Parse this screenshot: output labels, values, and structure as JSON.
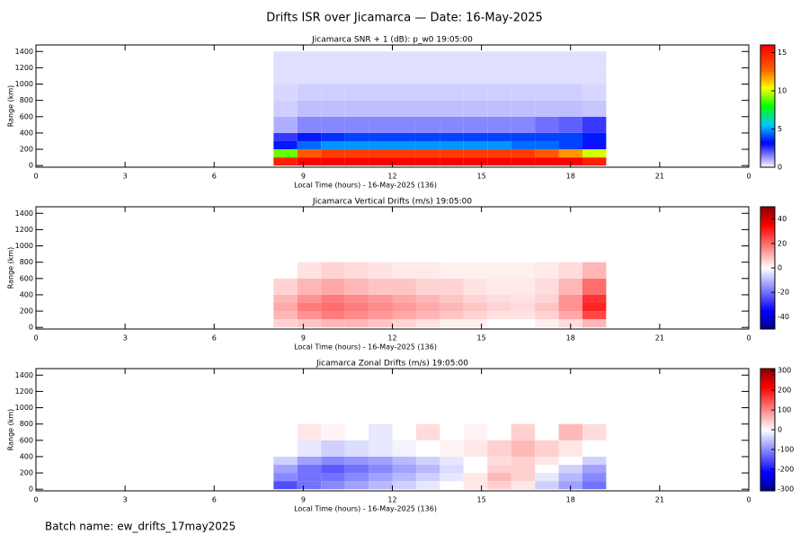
{
  "title": "Drifts ISR over Jicamarca — Date: 16-May-2025",
  "footer": "Batch name: ew_drifts_17may2025",
  "chart_data": [
    {
      "type": "heatmap",
      "title": "Jicamarca SNR + 1 (dB): p_w0 19:05:00",
      "xlabel": "Local Time (hours) - 16-May-2025 (136)",
      "ylabel": "Range (km)",
      "xlim": [
        0,
        24
      ],
      "xticks": [
        0,
        3,
        6,
        9,
        12,
        15,
        18,
        21,
        {
          "value": 24,
          "label": "0"
        }
      ],
      "ylim": [
        -20,
        1480
      ],
      "yticks": [
        0,
        200,
        400,
        600,
        800,
        1000,
        1200,
        1400
      ],
      "x": [
        8.0,
        8.8,
        9.6,
        10.4,
        11.2,
        12.0,
        12.8,
        13.6,
        14.4,
        15.2,
        16.0,
        16.8,
        17.6,
        18.4,
        19.2
      ],
      "y": [
        0,
        100,
        200,
        300,
        400,
        600,
        800,
        1000,
        1200,
        1400
      ],
      "values": [
        [
          15,
          16,
          16,
          16,
          16,
          16,
          16,
          16,
          16,
          16,
          16,
          16,
          16,
          15
        ],
        [
          9,
          13,
          14,
          14,
          14,
          14,
          14,
          14,
          14,
          14,
          14,
          13,
          12,
          10
        ],
        [
          3.5,
          4.5,
          5,
          5,
          5,
          5,
          5,
          5,
          5,
          5,
          4.5,
          4.5,
          4,
          3
        ],
        [
          2.5,
          3.5,
          3.8,
          4,
          4,
          4,
          4,
          4,
          4,
          4,
          4,
          4,
          4,
          3.5
        ],
        [
          1,
          1.5,
          1.5,
          1.5,
          1.5,
          1.5,
          1.5,
          1.5,
          1.5,
          1.5,
          1.5,
          1.8,
          2,
          2.5
        ],
        [
          0.6,
          0.8,
          0.8,
          0.8,
          0.8,
          0.8,
          0.8,
          0.8,
          0.8,
          0.8,
          0.8,
          0.8,
          0.8,
          0.7
        ],
        [
          0.5,
          0.6,
          0.6,
          0.6,
          0.6,
          0.6,
          0.6,
          0.6,
          0.6,
          0.6,
          0.6,
          0.6,
          0.6,
          0.5
        ],
        [
          0.4,
          0.4,
          0.4,
          0.4,
          0.4,
          0.4,
          0.4,
          0.4,
          0.4,
          0.4,
          0.4,
          0.4,
          0.4,
          0.4
        ],
        [
          0.4,
          0.4,
          0.4,
          0.4,
          0.4,
          0.4,
          0.4,
          0.4,
          0.4,
          0.4,
          0.4,
          0.4,
          0.4,
          0.4
        ]
      ],
      "clim": [
        0,
        16
      ],
      "cticks": [
        0,
        5,
        10,
        15
      ],
      "colorscale": [
        [
          0,
          "#ffffff"
        ],
        [
          0.2,
          "#0000ff"
        ],
        [
          0.35,
          "#00c8ff"
        ],
        [
          0.5,
          "#00ff00"
        ],
        [
          0.65,
          "#ffff00"
        ],
        [
          0.8,
          "#ff6000"
        ],
        [
          1,
          "#ff0000"
        ]
      ]
    },
    {
      "type": "heatmap",
      "title": "Jicamarca Vertical Drifts (m/s) 19:05:00",
      "xlabel": "Local Time (hours) - 16-May-2025 (136)",
      "ylabel": "Range (km)",
      "xlim": [
        0,
        24
      ],
      "xticks": [
        0,
        3,
        6,
        9,
        12,
        15,
        18,
        21,
        {
          "value": 24,
          "label": "0"
        }
      ],
      "ylim": [
        -20,
        1480
      ],
      "yticks": [
        0,
        200,
        400,
        600,
        800,
        1000,
        1200,
        1400
      ],
      "x": [
        8.0,
        8.8,
        9.6,
        10.4,
        11.2,
        12.0,
        12.8,
        13.6,
        14.4,
        15.2,
        16.0,
        16.8,
        17.6,
        18.4,
        19.2
      ],
      "y": [
        0,
        100,
        200,
        300,
        400,
        600,
        800,
        1000,
        1200,
        1400
      ],
      "values": [
        [
          6,
          8,
          10,
          10,
          8,
          6,
          4,
          2,
          2,
          0,
          0,
          2,
          5,
          10
        ],
        [
          10,
          15,
          18,
          16,
          14,
          12,
          10,
          8,
          6,
          4,
          4,
          6,
          12,
          25
        ],
        [
          12,
          18,
          20,
          18,
          16,
          14,
          12,
          10,
          8,
          6,
          5,
          8,
          15,
          30
        ],
        [
          10,
          15,
          18,
          16,
          14,
          12,
          10,
          8,
          6,
          5,
          4,
          6,
          15,
          28
        ],
        [
          6,
          10,
          12,
          10,
          8,
          8,
          6,
          6,
          4,
          3,
          3,
          5,
          10,
          20
        ],
        [
          null,
          4,
          6,
          5,
          4,
          3,
          3,
          2,
          2,
          2,
          2,
          3,
          5,
          10
        ],
        [
          null,
          null,
          null,
          null,
          null,
          null,
          null,
          null,
          null,
          null,
          null,
          null,
          null,
          null
        ],
        [
          null,
          null,
          null,
          null,
          null,
          null,
          null,
          null,
          null,
          null,
          null,
          null,
          null,
          null
        ],
        [
          null,
          null,
          null,
          null,
          null,
          null,
          null,
          null,
          null,
          null,
          null,
          null,
          null,
          null
        ]
      ],
      "clim": [
        -50,
        50
      ],
      "cticks": [
        -40,
        -20,
        0,
        20,
        40
      ],
      "colorscale": [
        [
          0,
          "#00008b"
        ],
        [
          0.15,
          "#0000ff"
        ],
        [
          0.5,
          "#ffffff"
        ],
        [
          0.85,
          "#ff0000"
        ],
        [
          1,
          "#8b0000"
        ]
      ]
    },
    {
      "type": "heatmap",
      "title": "Jicamarca Zonal Drifts (m/s) 19:05:00",
      "xlabel": "Local Time (hours) - 16-May-2025 (136)",
      "ylabel": "Range (km)",
      "xlim": [
        0,
        24
      ],
      "xticks": [
        0,
        3,
        6,
        9,
        12,
        15,
        18,
        21,
        {
          "value": 24,
          "label": "0"
        }
      ],
      "ylim": [
        -20,
        1480
      ],
      "yticks": [
        0,
        200,
        400,
        600,
        800,
        1000,
        1200,
        1400
      ],
      "x": [
        8.0,
        8.8,
        9.6,
        10.4,
        11.2,
        12.0,
        12.8,
        13.6,
        14.4,
        15.2,
        16.0,
        16.8,
        17.6,
        18.4,
        19.2
      ],
      "y": [
        0,
        100,
        200,
        300,
        400,
        600,
        800,
        1000,
        1200,
        1400
      ],
      "values": [
        [
          -150,
          -120,
          -100,
          -80,
          -60,
          -40,
          -20,
          0,
          20,
          40,
          20,
          -40,
          -80,
          -120
        ],
        [
          -100,
          -120,
          -120,
          -100,
          -80,
          -60,
          -40,
          -20,
          20,
          60,
          40,
          -20,
          -60,
          -100
        ],
        [
          -80,
          -120,
          -140,
          -120,
          -100,
          -80,
          -60,
          -30,
          0,
          40,
          40,
          0,
          -40,
          -80
        ],
        [
          -40,
          -80,
          -100,
          -90,
          -80,
          -60,
          -40,
          -20,
          0,
          30,
          40,
          20,
          0,
          -40
        ],
        [
          0,
          -20,
          -40,
          -30,
          -20,
          -10,
          0,
          10,
          20,
          40,
          60,
          40,
          20,
          0
        ],
        [
          null,
          20,
          10,
          null,
          -20,
          null,
          30,
          null,
          10,
          null,
          40,
          null,
          60,
          30
        ],
        [
          null,
          null,
          null,
          null,
          null,
          null,
          null,
          null,
          null,
          null,
          null,
          null,
          null,
          null
        ],
        [
          null,
          null,
          null,
          null,
          null,
          null,
          null,
          null,
          null,
          null,
          null,
          null,
          null,
          null
        ],
        [
          null,
          null,
          null,
          null,
          null,
          null,
          null,
          null,
          null,
          null,
          null,
          null,
          null,
          null
        ]
      ],
      "clim": [
        -310,
        310
      ],
      "cticks": [
        -300,
        -200,
        -100,
        0,
        100,
        200,
        300
      ],
      "colorscale": [
        [
          0,
          "#00008b"
        ],
        [
          0.15,
          "#0000ff"
        ],
        [
          0.5,
          "#ffffff"
        ],
        [
          0.85,
          "#ff0000"
        ],
        [
          1,
          "#8b0000"
        ]
      ]
    }
  ]
}
